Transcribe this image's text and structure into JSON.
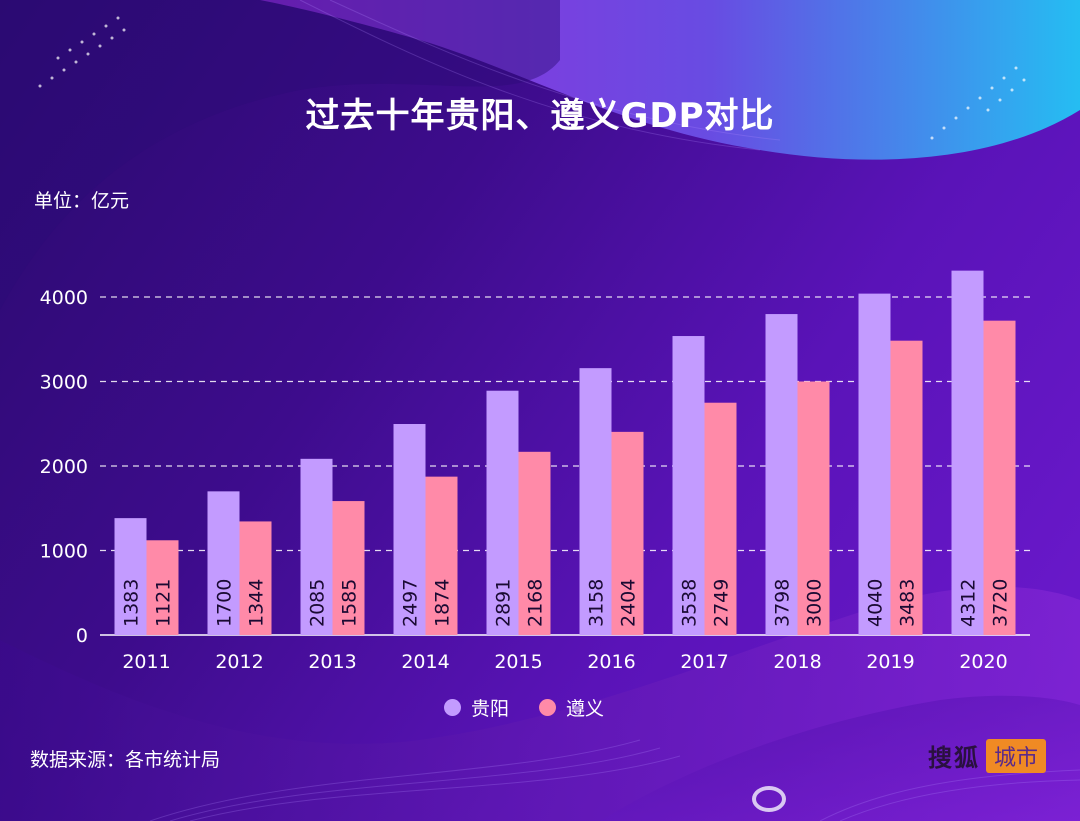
{
  "title": "过去十年贵阳、遵义GDP对比",
  "unit_label": "单位：亿元",
  "source_label": "数据来源：各市统计局",
  "brand": {
    "main": "搜狐",
    "tag": "城市"
  },
  "colors": {
    "guiyang": "#c39bff",
    "zunyi": "#ff8aa8",
    "grid": "#ffffff",
    "text": "#ffffff",
    "brand_tag": "#f08a24"
  },
  "chart_data": {
    "type": "bar",
    "title": "过去十年贵阳、遵义GDP对比",
    "xlabel": "",
    "ylabel": "单位：亿元",
    "categories": [
      "2011",
      "2012",
      "2013",
      "2014",
      "2015",
      "2016",
      "2017",
      "2018",
      "2019",
      "2020"
    ],
    "series": [
      {
        "name": "贵阳",
        "color": "#c39bff",
        "values": [
          1383,
          1700,
          2085,
          2497,
          2891,
          3158,
          3538,
          3798,
          4040,
          4312
        ]
      },
      {
        "name": "遵义",
        "color": "#ff8aa8",
        "values": [
          1121,
          1344,
          1585,
          1874,
          2168,
          2404,
          2749,
          3000,
          3483,
          3720
        ]
      }
    ],
    "ylim": [
      0,
      4000
    ],
    "yticks": [
      0,
      1000,
      2000,
      3000,
      4000
    ],
    "grid": true,
    "legend": "bottom-center",
    "data_labels": "rotated-inside-bars"
  }
}
